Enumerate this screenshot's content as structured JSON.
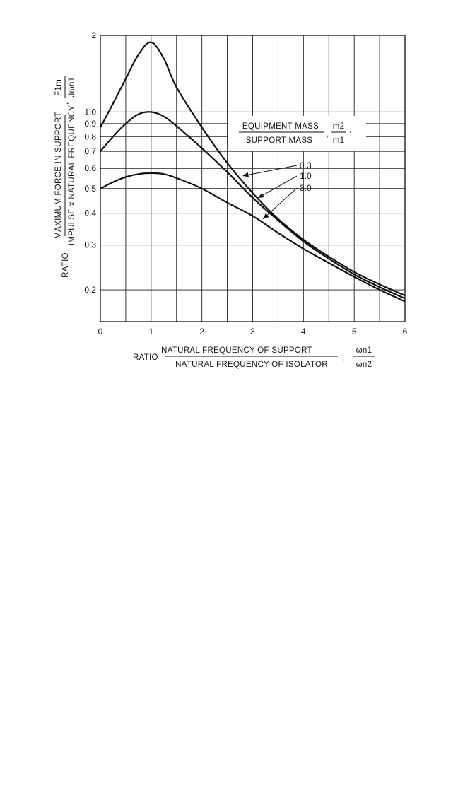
{
  "chart_data": {
    "type": "line",
    "x_scale": "linear",
    "y_scale": "log",
    "xlim": [
      0,
      6
    ],
    "ylim": [
      0.15,
      2
    ],
    "x_ticks": [
      0,
      1,
      2,
      3,
      4,
      5,
      6
    ],
    "x_tick_labels": [
      "0",
      "1",
      "2",
      "3",
      "4",
      "5",
      "6"
    ],
    "y_ticks": [
      0.2,
      0.3,
      0.4,
      0.5,
      0.6,
      0.7,
      0.8,
      0.9,
      1.0,
      2
    ],
    "y_tick_labels": [
      "0.2",
      "0.3",
      "0.4",
      "0.5",
      "0.6",
      "0.7",
      "0.8",
      "0.9",
      "1.0",
      "2"
    ],
    "grid": true,
    "xlabel": {
      "prefix": "RATIO",
      "numerator": "NATURAL FREQUENCY OF SUPPORT",
      "denominator": "NATURAL FREQUENCY OF ISOLATOR",
      "symbol_num": "ωn1",
      "symbol_den": "ωn2"
    },
    "ylabel": {
      "prefix": "RATIO",
      "numerator": "MAXIMUM FORCE IN SUPPORT",
      "denominator": "IMPULSE x NATURAL FREQUENCY",
      "symbol_num": "F1m",
      "symbol_den": "Jωn1"
    },
    "legend": {
      "numerator": "EQUIPMENT MASS",
      "denominator": "SUPPORT MASS",
      "symbol_num": "m2",
      "symbol_den": "m1"
    },
    "x": [
      0,
      0.25,
      0.5,
      0.75,
      1.0,
      1.25,
      1.5,
      2.0,
      2.5,
      3.0,
      3.5,
      4.0,
      4.5,
      5.0,
      5.5,
      6.0
    ],
    "series": [
      {
        "name": "0.3",
        "values": [
          0.87,
          1.08,
          1.35,
          1.68,
          1.88,
          1.62,
          1.25,
          0.87,
          0.63,
          0.48,
          0.38,
          0.315,
          0.27,
          0.235,
          0.21,
          0.19
        ]
      },
      {
        "name": "1.0",
        "values": [
          0.7,
          0.8,
          0.9,
          0.98,
          1.0,
          0.96,
          0.88,
          0.72,
          0.58,
          0.46,
          0.375,
          0.31,
          0.265,
          0.23,
          0.205,
          0.185
        ]
      },
      {
        "name": "3.0",
        "values": [
          0.5,
          0.53,
          0.555,
          0.57,
          0.575,
          0.57,
          0.55,
          0.5,
          0.44,
          0.39,
          0.335,
          0.29,
          0.255,
          0.225,
          0.2,
          0.18
        ]
      }
    ]
  }
}
